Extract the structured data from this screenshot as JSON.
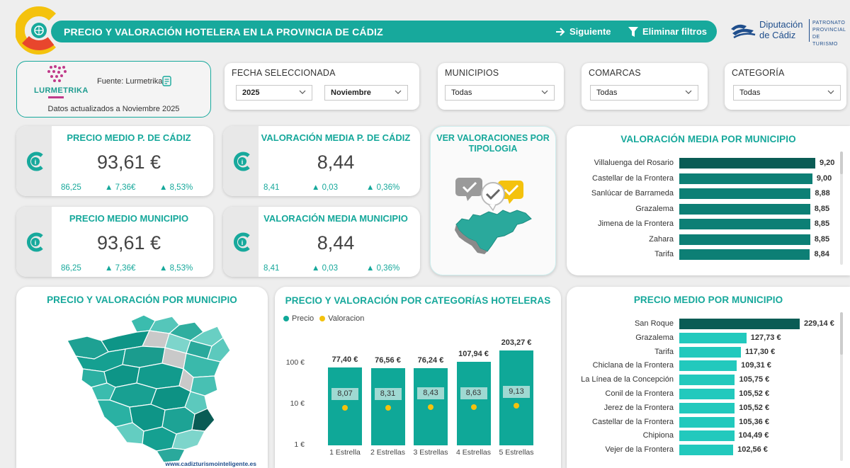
{
  "header": {
    "title": "PRECIO Y VALORACIÓN HOTELERA EN LA PROVINCIA DE CÁDIZ",
    "next_label": "Siguiente",
    "clear_filters_label": "Eliminar filtros",
    "org_name_line1": "Diputación",
    "org_name_line2": "de Cádiz",
    "org_sub_line1": "PATRONATO",
    "org_sub_line2": "PROVINCIAL",
    "org_sub_line3": "DE TURISMO",
    "accent": "#17a99c"
  },
  "source": {
    "logo_text": "LURMETRIKA",
    "source_label": "Fuente: Lurmetrika",
    "updated": "Datos actualizados a Noviembre 2025"
  },
  "filters": {
    "fecha": {
      "label": "FECHA SELECCIONADA",
      "year": "2025",
      "month": "Noviembre"
    },
    "municipios": {
      "label": "MUNICIPIOS",
      "value": "Todas"
    },
    "comarcas": {
      "label": "COMARCAS",
      "value": "Todas"
    },
    "categoria": {
      "label": "CATEGORÍA",
      "value": "Todas"
    }
  },
  "kpis": {
    "precio_cadiz": {
      "title": "PRECIO MEDIO P. DE CÁDIZ",
      "value": "93,61 €",
      "prev": "86,25",
      "delta_abs": "▲ 7,36€",
      "delta_pct": "▲ 8,53%"
    },
    "valoracion_cadiz": {
      "title": "VALORACIÓN MEDIA P. DE CÁDIZ",
      "value": "8,44",
      "prev": "8,41",
      "delta_abs": "▲ 0,03",
      "delta_pct": "▲ 0,36%"
    },
    "precio_municipio": {
      "title": "PRECIO MEDIO MUNICIPIO",
      "value": "93,61 €",
      "prev": "86,25",
      "delta_abs": "▲ 7,36€",
      "delta_pct": "▲ 8,53%"
    },
    "valoracion_municipio": {
      "title": "VALORACIÓN MEDIA MUNICIPIO",
      "value": "8,44",
      "prev": "8,41",
      "delta_abs": "▲ 0,03",
      "delta_pct": "▲ 0,36%"
    }
  },
  "ver_valoraciones": {
    "title_line1": "VER VALORACIONES POR",
    "title_line2": "TIPOLOGIA"
  },
  "map_card": {
    "title": "PRECIO Y VALORACIÓN POR MUNICIPIO",
    "url": "www.cadizturismointeligente.es"
  },
  "chart_data": [
    {
      "type": "bar",
      "title": "VALORACIÓN MEDIA POR MUNICIPIO",
      "orientation": "horizontal",
      "categories": [
        "Villaluenga del Rosario",
        "Castellar de la Frontera",
        "Sanlúcar de Barrameda",
        "Grazalema",
        "Jimena de la Frontera",
        "Zahara",
        "Tarifa"
      ],
      "values": [
        9.2,
        9.0,
        8.88,
        8.85,
        8.85,
        8.85,
        8.84
      ],
      "labels": [
        "9,20",
        "9,00",
        "8,88",
        "8,85",
        "8,85",
        "8,85",
        "8,84"
      ],
      "colors": [
        "#0a5c55",
        "#0d7f75",
        "#0d7f75",
        "#0d7f75",
        "#0d7f75",
        "#0d7f75",
        "#0d7f75"
      ]
    },
    {
      "type": "bar",
      "title": "PRECIO Y VALORACIÓN POR CATEGORÍAS HOTELERAS",
      "categories": [
        "1 Estrella",
        "2 Estrellas",
        "3 Estrellas",
        "4 Estrellas",
        "5 Estrellas"
      ],
      "y_scale": "log",
      "y_ticks": [
        "1 €",
        "10 €",
        "100 €"
      ],
      "legend": "top-left",
      "series": [
        {
          "name": "Precio",
          "color": "#0fa898",
          "values": [
            77.4,
            76.56,
            76.24,
            107.94,
            203.27
          ],
          "labels": [
            "77,40 €",
            "76,56 €",
            "76,24 €",
            "107,94 €",
            "203,27 €"
          ]
        },
        {
          "name": "Valoracion",
          "color": "#f4c20d",
          "values": [
            8.07,
            8.31,
            8.43,
            8.63,
            9.13
          ],
          "labels": [
            "8,07",
            "8,31",
            "8,43",
            "8,63",
            "9,13"
          ]
        }
      ]
    },
    {
      "type": "bar",
      "title": "PRECIO MEDIO POR MUNICIPIO",
      "orientation": "horizontal",
      "categories": [
        "San Roque",
        "Grazalema",
        "Tarifa",
        "Chiclana de la Frontera",
        "La Línea de la Concepción",
        "Conil de la Frontera",
        "Jerez de la Frontera",
        "Castellar de la Frontera",
        "Chipiona",
        "Vejer de la Frontera"
      ],
      "values": [
        229.14,
        127.73,
        117.3,
        109.31,
        105.75,
        105.52,
        105.52,
        105.36,
        104.49,
        102.56
      ],
      "labels": [
        "229,14 €",
        "127,73 €",
        "117,30 €",
        "109,31 €",
        "105,75 €",
        "105,52 €",
        "105,52 €",
        "105,36 €",
        "104,49 €",
        "102,56 €"
      ],
      "colors": [
        "#0a5c55",
        "#22c9bd",
        "#22c9bd",
        "#22c9bd",
        "#22c9bd",
        "#22c9bd",
        "#22c9bd",
        "#22c9bd",
        "#22c9bd",
        "#22c9bd"
      ]
    }
  ]
}
